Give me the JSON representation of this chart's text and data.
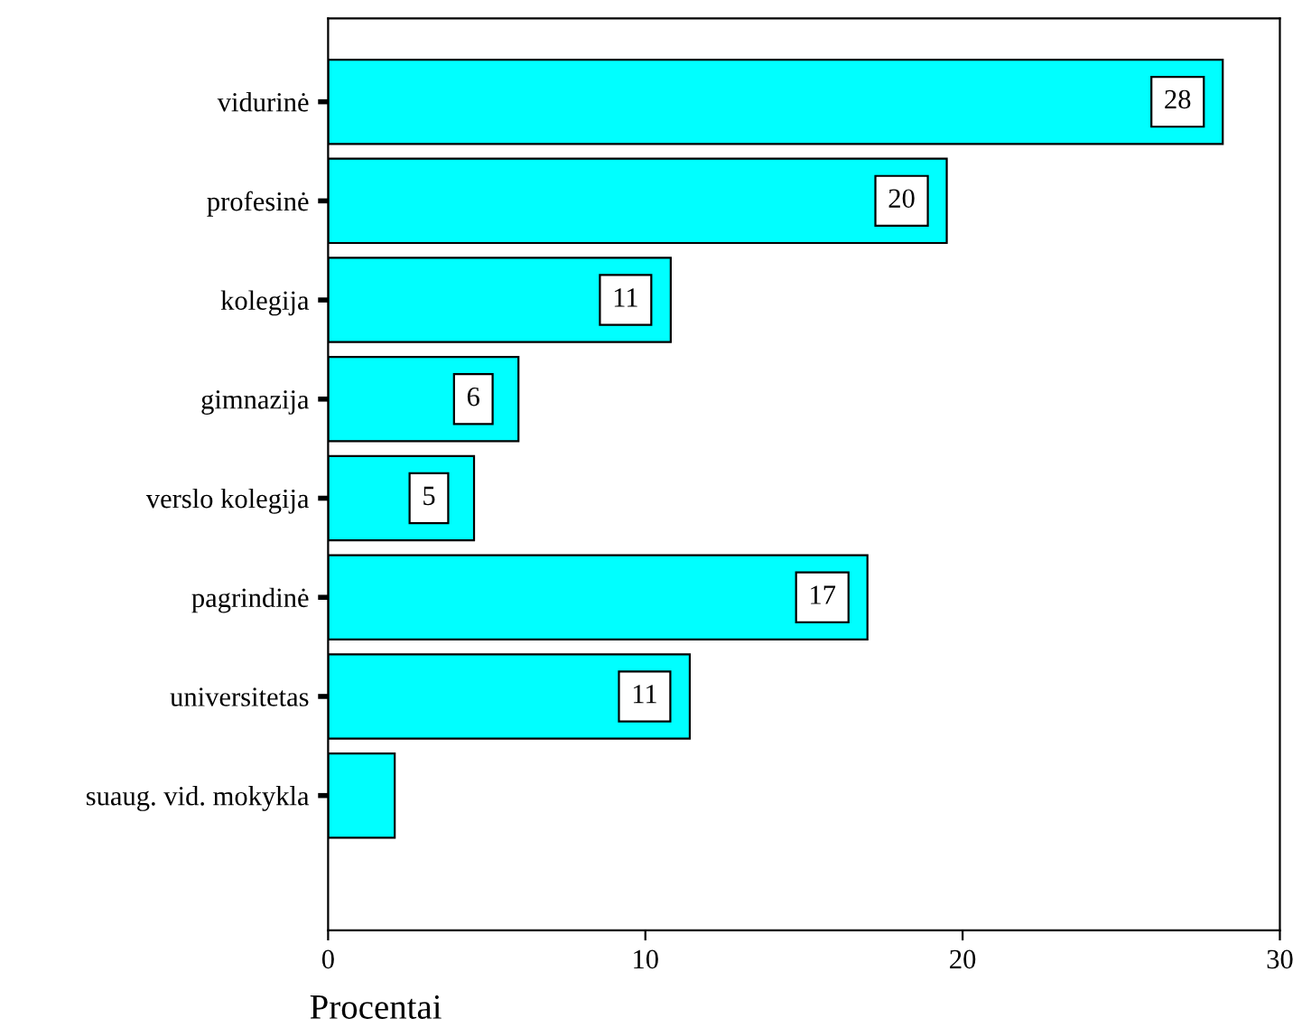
{
  "chart_data": {
    "type": "bar",
    "orientation": "horizontal",
    "categories": [
      "vidurinė",
      "profesinė",
      "kolegija",
      "gimnazija",
      "verslo kolegija",
      "pagrindinė",
      "universitetas",
      "suaug. vid. mokykla"
    ],
    "values": [
      28.2,
      19.5,
      10.8,
      6.0,
      4.6,
      17.0,
      11.4,
      2.1
    ],
    "value_labels": [
      "28",
      "20",
      "11",
      "6",
      "5",
      "17",
      "11",
      null
    ],
    "color": "#00ffff",
    "xlabel": "Procentai",
    "xlim": [
      0,
      30
    ],
    "xticks": [
      0,
      10,
      20,
      30
    ],
    "grid": false,
    "legend": false
  }
}
